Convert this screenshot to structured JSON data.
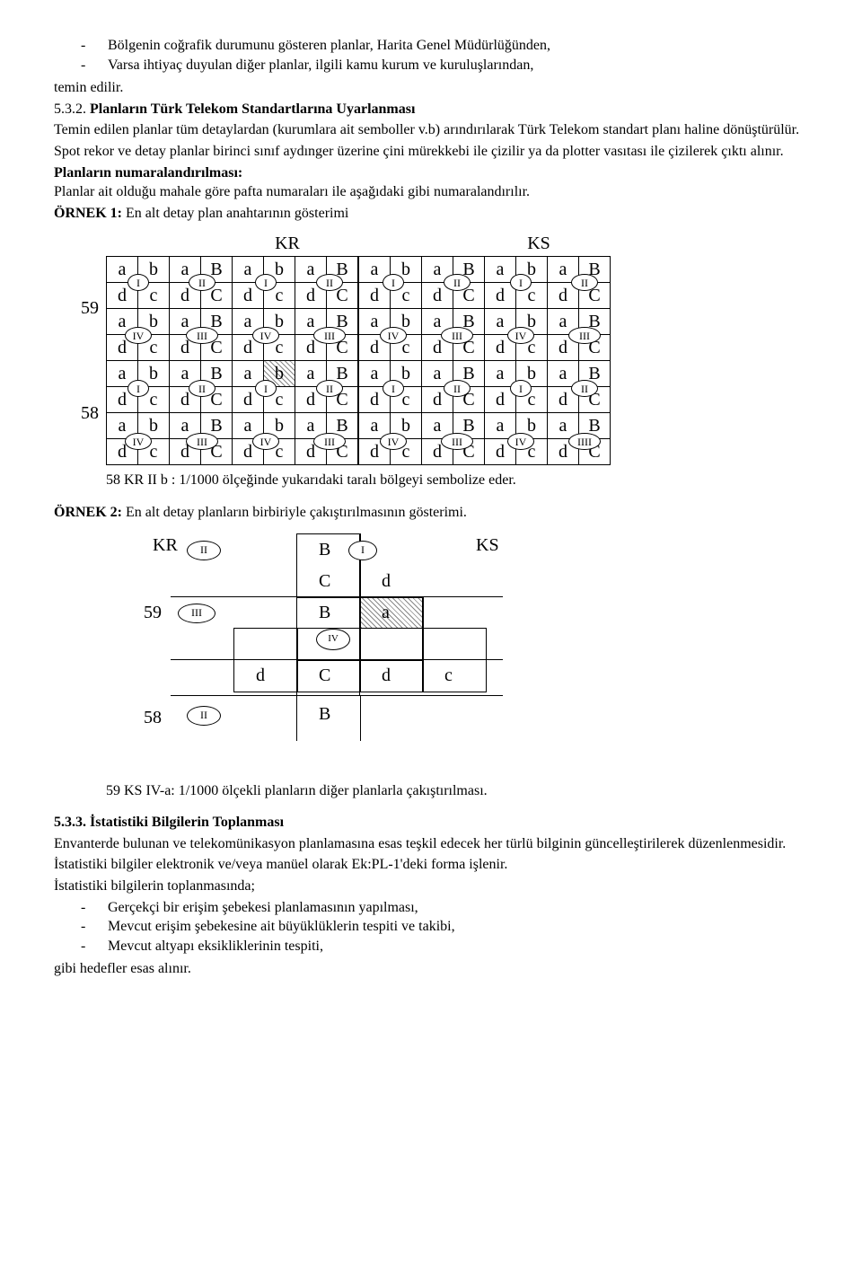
{
  "bullets1": [
    "Bölgenin coğrafik durumunu gösteren planlar,  Harita Genel Müdürlüğünden,",
    "Varsa ihtiyaç duyulan diğer planlar, ilgili kamu kurum ve kuruluşlarından,"
  ],
  "line_temin": "temin edilir.",
  "h1_num": "5.3.2. ",
  "h1_title": "Planların Türk Telekom Standartlarına Uyarlanması",
  "p1": "Temin edilen planlar tüm detaylardan (kurumlara ait semboller v.b) arındırılarak Türk Telekom standart planı haline dönüştürülür.",
  "p2": "Spot rekor ve detay planlar birinci sınıf aydınger üzerine çini mürekkebi ile çizilir ya da plotter vasıtası ile çizilerek çıktı alınır.",
  "p3_title": "Planların numaralandırılması:",
  "p3": "Planlar ait olduğu mahale göre pafta numaraları ile aşağıdaki gibi numaralandırılır.",
  "ornek1_title": "ÖRNEK 1:",
  "ornek1_rest": " En alt detay plan anahtarının gösterimi",
  "labels": {
    "KR": "KR",
    "KS": "KS",
    "r59": "59",
    "r58": "58"
  },
  "roman": {
    "I": "I",
    "II": "II",
    "III": "III",
    "IV": "IV",
    "IIII": "IIII"
  },
  "cells": {
    "a": "a",
    "b": "b",
    "c": "c",
    "d": "d",
    "B": "B",
    "C": "C"
  },
  "highlight_coord": [
    4,
    5
  ],
  "caption1": "58 KR II b : 1/1000 ölçeğinde yukarıdaki taralı bölgeyi sembolize eder.",
  "ornek2_title": "ÖRNEK 2:",
  "ornek2_rest": " En alt detay planların birbiriyle çakıştırılmasının gösterimi.",
  "caption2": "59 KS IV-a: 1/1000 ölçekli planların diğer planlarla çakıştırılması.",
  "h2_num": "5.3.3. ",
  "h2_title": "İstatistiki Bilgilerin Toplanması",
  "p4": "Envanterde bulunan ve telekomünikasyon planlamasına esas teşkil edecek her türlü bilginin güncelleştirilerek düzenlenmesidir.",
  "p5": "İstatistiki bilgiler elektronik ve/veya manüel olarak Ek:PL-1'deki forma işlenir.",
  "p6": "İstatistiki bilgilerin toplanmasında;",
  "bullets2": [
    "Gerçekçi bir erişim şebekesi planlamasının yapılması,",
    "Mevcut erişim şebekesine ait büyüklüklerin tespiti ve takibi,",
    "Mevcut altyapı eksikliklerinin tespiti,"
  ],
  "p7": "gibi hedefler esas alınır."
}
